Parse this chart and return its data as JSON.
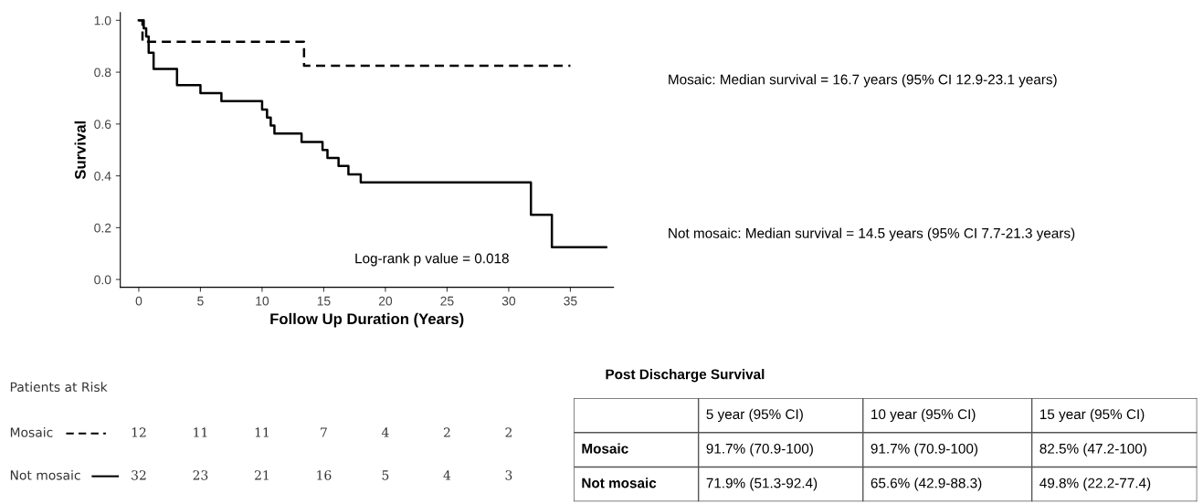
{
  "chart_data": [
    {
      "type": "step",
      "ylabel": "Survival",
      "xlabel": "Follow Up Duration (Years)",
      "xlim": [
        -1.5,
        38.5
      ],
      "ylim": [
        -0.03,
        1.03
      ],
      "xticks": [
        0,
        5,
        10,
        15,
        20,
        25,
        30,
        35
      ],
      "yticks": [
        {
          "value": 0,
          "label": "0.0"
        },
        {
          "value": 0.2,
          "label": "0.2"
        },
        {
          "value": 0.4,
          "label": "0.4"
        },
        {
          "value": 0.6,
          "label": "0.6"
        },
        {
          "value": 0.8,
          "label": "0.8"
        },
        {
          "value": 1,
          "label": "1.0"
        }
      ],
      "grid": false,
      "legend": false,
      "marker": "none",
      "series": [
        {
          "color": "#000000",
          "line_style": "dashed",
          "x": [
            0,
            0.3,
            13.4,
            35.0
          ],
          "values": [
            1.0,
            0.917,
            0.825,
            0.825
          ]
        },
        {
          "color": "#000000",
          "line_style": "solid",
          "x": [
            0,
            0.4,
            0.6,
            0.8,
            1.2,
            3.1,
            5.0,
            6.7,
            10.0,
            10.4,
            10.7,
            11.0,
            13.2,
            14.9,
            15.3,
            16.2,
            17.0,
            18.0,
            31.8,
            33.5,
            37.9
          ],
          "values": [
            1.0,
            0.969,
            0.938,
            0.875,
            0.813,
            0.75,
            0.719,
            0.688,
            0.656,
            0.625,
            0.594,
            0.563,
            0.531,
            0.5,
            0.469,
            0.438,
            0.406,
            0.375,
            0.25,
            0.125,
            0.125
          ]
        }
      ],
      "annotations": [
        "Log-rank p value = 0.018",
        "Mosaic: Median survival = 16.7 years (95% CI 12.9-23.1 years)",
        "Not mosaic: Median survival = 14.5 years (95% CI 7.7-21.3 years)"
      ]
    },
    {
      "type": "other",
      "title": "Patients at Risk",
      "y_categories": [
        "Mosaic",
        "Not mosaic"
      ],
      "cell_labels": [
        [
          "12",
          "11",
          "11",
          "7",
          "4",
          "2",
          "2"
        ],
        [
          "32",
          "23",
          "21",
          "16",
          "5",
          "4",
          "3"
        ]
      ]
    },
    {
      "type": "other",
      "title": "Post Discharge Survival",
      "categories": [
        null,
        "5 year (95% CI)",
        "10 year (95% CI)",
        "15 year (95% CI)"
      ],
      "y_categories": [
        "Mosaic",
        "Not mosaic"
      ],
      "cell_labels": [
        [
          "91.7% (70.9-100)",
          "91.7% (70.9-100)",
          "82.5% (47.2-100)"
        ],
        [
          "71.9% (51.3-92.4)",
          "65.6% (42.9-88.3)",
          "49.8% (22.2-77.4)"
        ]
      ]
    }
  ]
}
